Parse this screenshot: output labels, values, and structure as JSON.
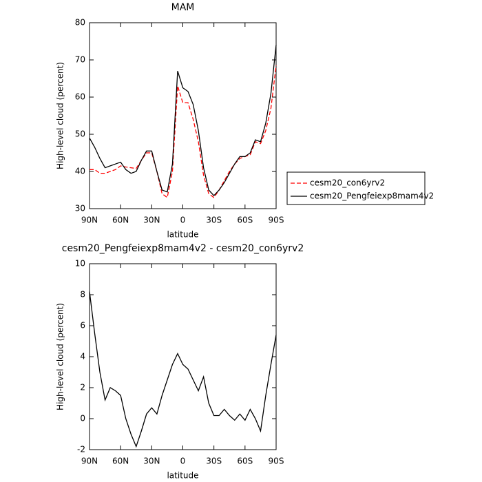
{
  "chart_data": [
    {
      "type": "line",
      "title": "MAM",
      "xlabel": "latitude",
      "ylabel": "High-level cloud (percent)",
      "x": [
        90,
        85,
        80,
        75,
        70,
        65,
        60,
        55,
        50,
        45,
        40,
        35,
        30,
        25,
        20,
        15,
        10,
        5,
        0,
        -5,
        -10,
        -15,
        -20,
        -25,
        -30,
        -35,
        -40,
        -45,
        -50,
        -55,
        -60,
        -65,
        -70,
        -75,
        -80,
        -85,
        -90
      ],
      "xlim": [
        90,
        -90
      ],
      "xticks": [
        {
          "value": 90,
          "label": "90N"
        },
        {
          "value": 60,
          "label": "60N"
        },
        {
          "value": 30,
          "label": "30N"
        },
        0,
        {
          "value": -30,
          "label": "30S"
        },
        {
          "value": -60,
          "label": "60S"
        },
        {
          "value": -90,
          "label": "90S"
        }
      ],
      "ylim": [
        30,
        80
      ],
      "yticks": [
        30,
        40,
        50,
        60,
        70,
        80
      ],
      "legend": "right",
      "series": [
        {
          "name": "cesm20_con6yrv2",
          "color": "#ff0000",
          "dashed": true,
          "values": [
            40.5,
            40.5,
            39.5,
            39.5,
            40,
            40.5,
            41.5,
            41.2,
            41,
            40.8,
            43,
            45,
            45,
            40,
            34,
            33,
            40,
            63,
            58.5,
            58.5,
            54,
            48,
            39,
            34,
            33,
            35,
            37.5,
            40,
            42,
            43.5,
            44,
            44.5,
            48,
            47.5,
            51,
            57,
            68.5
          ]
        },
        {
          "name": "cesm20_Pengfeiexp8mam4v2",
          "color": "#000000",
          "dashed": false,
          "values": [
            49,
            46.5,
            43.5,
            41,
            41.5,
            42,
            42.5,
            40.5,
            39.5,
            40,
            43,
            45.5,
            45.5,
            40,
            35,
            34.5,
            42,
            67,
            62.5,
            61.5,
            58,
            51,
            41,
            35,
            33.5,
            35,
            37,
            39.5,
            42,
            44,
            44,
            45,
            48.5,
            48,
            53,
            61,
            74
          ]
        }
      ]
    },
    {
      "type": "line",
      "title": "cesm20_Pengfeiexp8mam4v2 - cesm20_con6yrv2",
      "xlabel": "latitude",
      "ylabel": "High-level cloud (percent)",
      "x": [
        90,
        85,
        80,
        75,
        70,
        65,
        60,
        55,
        50,
        45,
        40,
        35,
        30,
        25,
        20,
        15,
        10,
        5,
        0,
        -5,
        -10,
        -15,
        -20,
        -25,
        -30,
        -35,
        -40,
        -45,
        -50,
        -55,
        -60,
        -65,
        -70,
        -75,
        -80,
        -85,
        -90
      ],
      "xlim": [
        90,
        -90
      ],
      "xticks": [
        {
          "value": 90,
          "label": "90N"
        },
        {
          "value": 60,
          "label": "60N"
        },
        {
          "value": 30,
          "label": "30N"
        },
        0,
        {
          "value": -30,
          "label": "30S"
        },
        {
          "value": -60,
          "label": "60S"
        },
        {
          "value": -90,
          "label": "90S"
        }
      ],
      "ylim": [
        -2,
        10
      ],
      "yticks": [
        -2,
        0,
        2,
        4,
        6,
        8,
        10
      ],
      "color": "#000000",
      "values": [
        8.2,
        5.5,
        3,
        1.2,
        2,
        1.8,
        1.5,
        0,
        -1,
        -1.8,
        -0.8,
        0.3,
        0.7,
        0.3,
        1.5,
        2.5,
        3.5,
        4.2,
        3.5,
        3.2,
        2.5,
        1.8,
        2.7,
        1,
        0.2,
        0.2,
        0.6,
        0.2,
        -0.1,
        0.3,
        -0.1,
        0.6,
        0,
        -0.8,
        1.5,
        3.5,
        5.4
      ]
    }
  ]
}
